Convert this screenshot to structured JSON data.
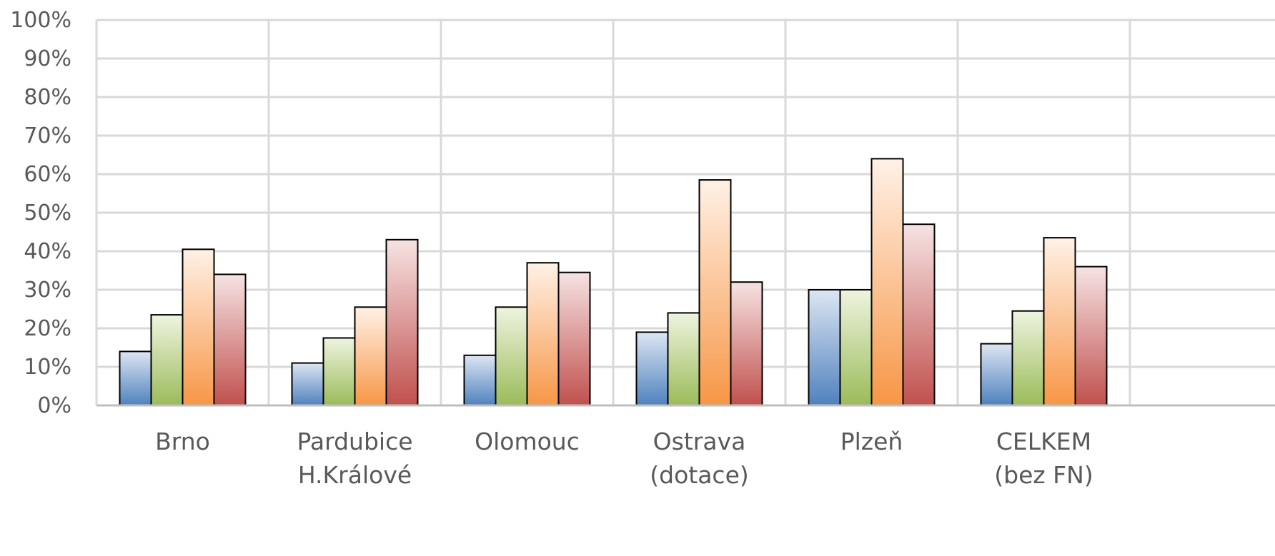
{
  "chart_data": {
    "type": "bar",
    "title": "",
    "xlabel": "",
    "ylabel": "",
    "categories": [
      [
        "Brno"
      ],
      [
        "Pardubice",
        "H.Králové"
      ],
      [
        "Olomouc"
      ],
      [
        "Ostrava",
        "(dotace)"
      ],
      [
        "Plzeň"
      ],
      [
        "CELKEM",
        "(bez FN)"
      ]
    ],
    "series": [
      {
        "color_top": "#dde6f3",
        "color_bottom": "#4f81bd",
        "values": [
          14,
          11,
          13,
          19,
          30,
          16
        ]
      },
      {
        "color_top": "#eef4e0",
        "color_bottom": "#9bbb59",
        "values": [
          23.5,
          17.5,
          25.5,
          24,
          30,
          24.5
        ]
      },
      {
        "color_top": "#fff1e6",
        "color_bottom": "#f79646",
        "values": [
          40.5,
          25.5,
          37,
          58.5,
          64,
          43.5
        ]
      },
      {
        "color_top": "#f6e3e3",
        "color_bottom": "#c0504d",
        "values": [
          34,
          43,
          34.5,
          32,
          47,
          36
        ]
      }
    ],
    "ylim": [
      0,
      100
    ],
    "y_ticks": [
      0,
      10,
      20,
      30,
      40,
      50,
      60,
      70,
      80,
      90,
      100
    ],
    "y_tick_format": "%",
    "grid": true,
    "legend": "none",
    "gridline_color": "#d9d9d9",
    "bar_outline_color": "#000000"
  }
}
